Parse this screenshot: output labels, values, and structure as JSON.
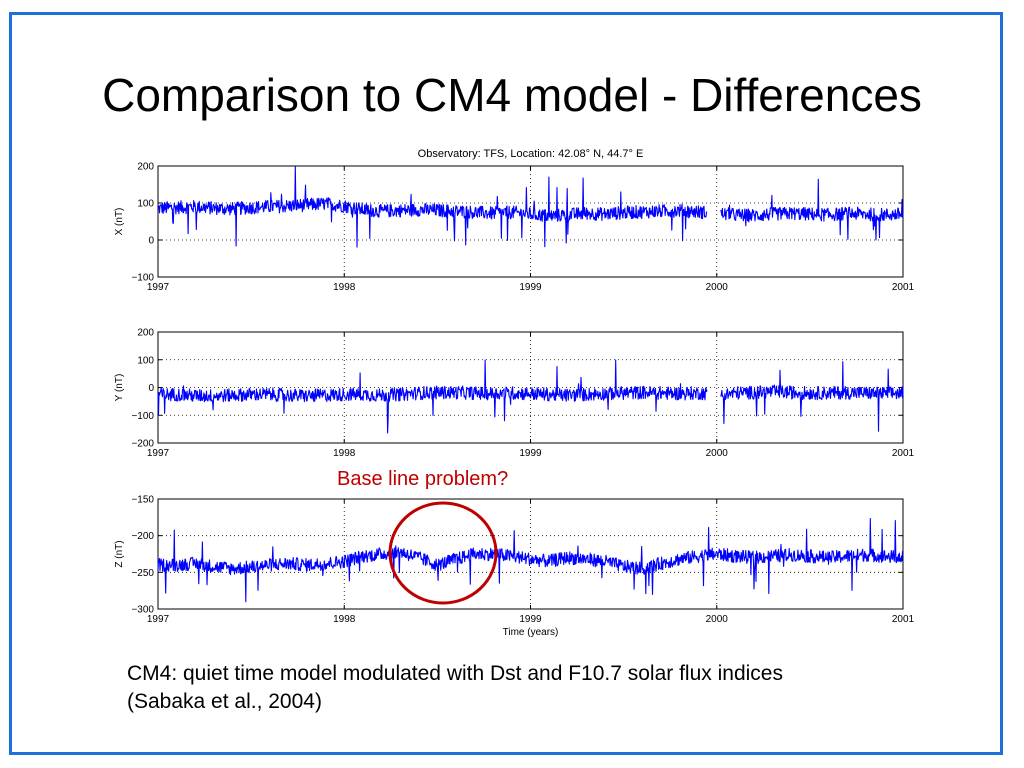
{
  "slide": {
    "title": "Comparison to CM4 model - Differences",
    "annotation": "Base line problem?",
    "caption_line1": "CM4: quiet time model modulated with Dst and F10.7 solar flux indices",
    "caption_line2": "(Sabaka et al., 2004)",
    "frame_color": "#1f6fd8",
    "annotation_color": "#c00000"
  },
  "chart_data": [
    {
      "type": "line",
      "title": "Observatory: TFS, Location: 42.08° N, 44.7° E",
      "ylabel": "X (nT)",
      "xlabel": "",
      "xlim": [
        1997,
        2001
      ],
      "ylim": [
        -100,
        200
      ],
      "xticks": [
        "1997",
        "1998",
        "1999",
        "2000",
        "2001"
      ],
      "yticks": [
        "200",
        "100",
        "0",
        "−100"
      ],
      "grid": true,
      "color": "#0000ff",
      "data_gap": [
        1999.95,
        2000.02
      ],
      "series": [
        {
          "x": [
            1997.0,
            1997.1,
            1997.2,
            1997.3,
            1997.4,
            1997.5,
            1997.6,
            1997.7,
            1997.8,
            1997.9,
            1998.0,
            1998.1,
            1998.2,
            1998.3,
            1998.4,
            1998.5,
            1998.6,
            1998.7,
            1998.8,
            1998.9,
            1999.0,
            1999.1,
            1999.2,
            1999.3,
            1999.4,
            1999.5,
            1999.6,
            1999.7,
            1999.8,
            1999.9,
            2000.05,
            2000.1,
            2000.2,
            2000.3,
            2000.4,
            2000.5,
            2000.6,
            2000.7,
            2000.8,
            2000.9,
            2001.0
          ],
          "y": [
            85,
            88,
            90,
            86,
            84,
            88,
            90,
            92,
            95,
            98,
            92,
            82,
            78,
            80,
            82,
            80,
            78,
            75,
            72,
            75,
            70,
            65,
            68,
            72,
            70,
            74,
            76,
            78,
            80,
            76,
            70,
            68,
            66,
            70,
            72,
            70,
            68,
            72,
            70,
            68,
            70
          ]
        }
      ]
    },
    {
      "type": "line",
      "ylabel": "Y (nT)",
      "xlabel": "",
      "xlim": [
        1997,
        2001
      ],
      "ylim": [
        -200,
        200
      ],
      "xticks": [
        "1997",
        "1998",
        "1999",
        "2000",
        "2001"
      ],
      "yticks": [
        "200",
        "100",
        "0",
        "−100",
        "−200"
      ],
      "grid": true,
      "color": "#0000ff",
      "data_gap": [
        1999.95,
        2000.02
      ],
      "series": [
        {
          "x": [
            1997.0,
            1997.1,
            1997.2,
            1997.3,
            1997.4,
            1997.5,
            1997.6,
            1997.7,
            1997.8,
            1997.9,
            1998.0,
            1998.1,
            1998.2,
            1998.3,
            1998.4,
            1998.5,
            1998.6,
            1998.7,
            1998.8,
            1998.9,
            1999.0,
            1999.1,
            1999.2,
            1999.3,
            1999.4,
            1999.5,
            1999.6,
            1999.7,
            1999.8,
            1999.9,
            2000.05,
            2000.1,
            2000.2,
            2000.3,
            2000.4,
            2000.5,
            2000.6,
            2000.7,
            2000.8,
            2000.9,
            2001.0
          ],
          "y": [
            -25,
            -25,
            -30,
            -30,
            -28,
            -25,
            -25,
            -28,
            -30,
            -28,
            -25,
            -25,
            -28,
            -25,
            -20,
            -18,
            -18,
            -20,
            -22,
            -20,
            -22,
            -25,
            -28,
            -25,
            -22,
            -20,
            -18,
            -20,
            -22,
            -20,
            -25,
            -20,
            -18,
            -15,
            -18,
            -20,
            -20,
            -18,
            -20,
            -22,
            -20
          ]
        }
      ]
    },
    {
      "type": "line",
      "ylabel": "Z (nT)",
      "xlabel": "Time (years)",
      "xlim": [
        1997,
        2001
      ],
      "ylim": [
        -300,
        -150
      ],
      "xticks": [
        "1997",
        "1998",
        "1999",
        "2000",
        "2001"
      ],
      "yticks": [
        "−150",
        "−200",
        "−250",
        "−300"
      ],
      "grid": true,
      "color": "#0000ff",
      "series": [
        {
          "x": [
            1997.0,
            1997.1,
            1997.2,
            1997.3,
            1997.4,
            1997.5,
            1997.6,
            1997.7,
            1997.8,
            1997.9,
            1998.0,
            1998.1,
            1998.2,
            1998.3,
            1998.4,
            1998.5,
            1998.6,
            1998.7,
            1998.8,
            1998.9,
            1999.0,
            1999.1,
            1999.2,
            1999.3,
            1999.4,
            1999.5,
            1999.6,
            1999.7,
            1999.8,
            1999.9,
            2000.0,
            2000.1,
            2000.2,
            2000.3,
            2000.4,
            2000.5,
            2000.6,
            2000.7,
            2000.8,
            2000.9,
            2001.0
          ],
          "y": [
            -240,
            -240,
            -238,
            -242,
            -245,
            -243,
            -240,
            -238,
            -240,
            -238,
            -235,
            -228,
            -225,
            -222,
            -230,
            -240,
            -232,
            -225,
            -225,
            -228,
            -232,
            -235,
            -230,
            -232,
            -235,
            -242,
            -245,
            -238,
            -232,
            -228,
            -225,
            -228,
            -230,
            -228,
            -226,
            -228,
            -230,
            -228,
            -226,
            -228,
            -230
          ]
        }
      ]
    }
  ]
}
